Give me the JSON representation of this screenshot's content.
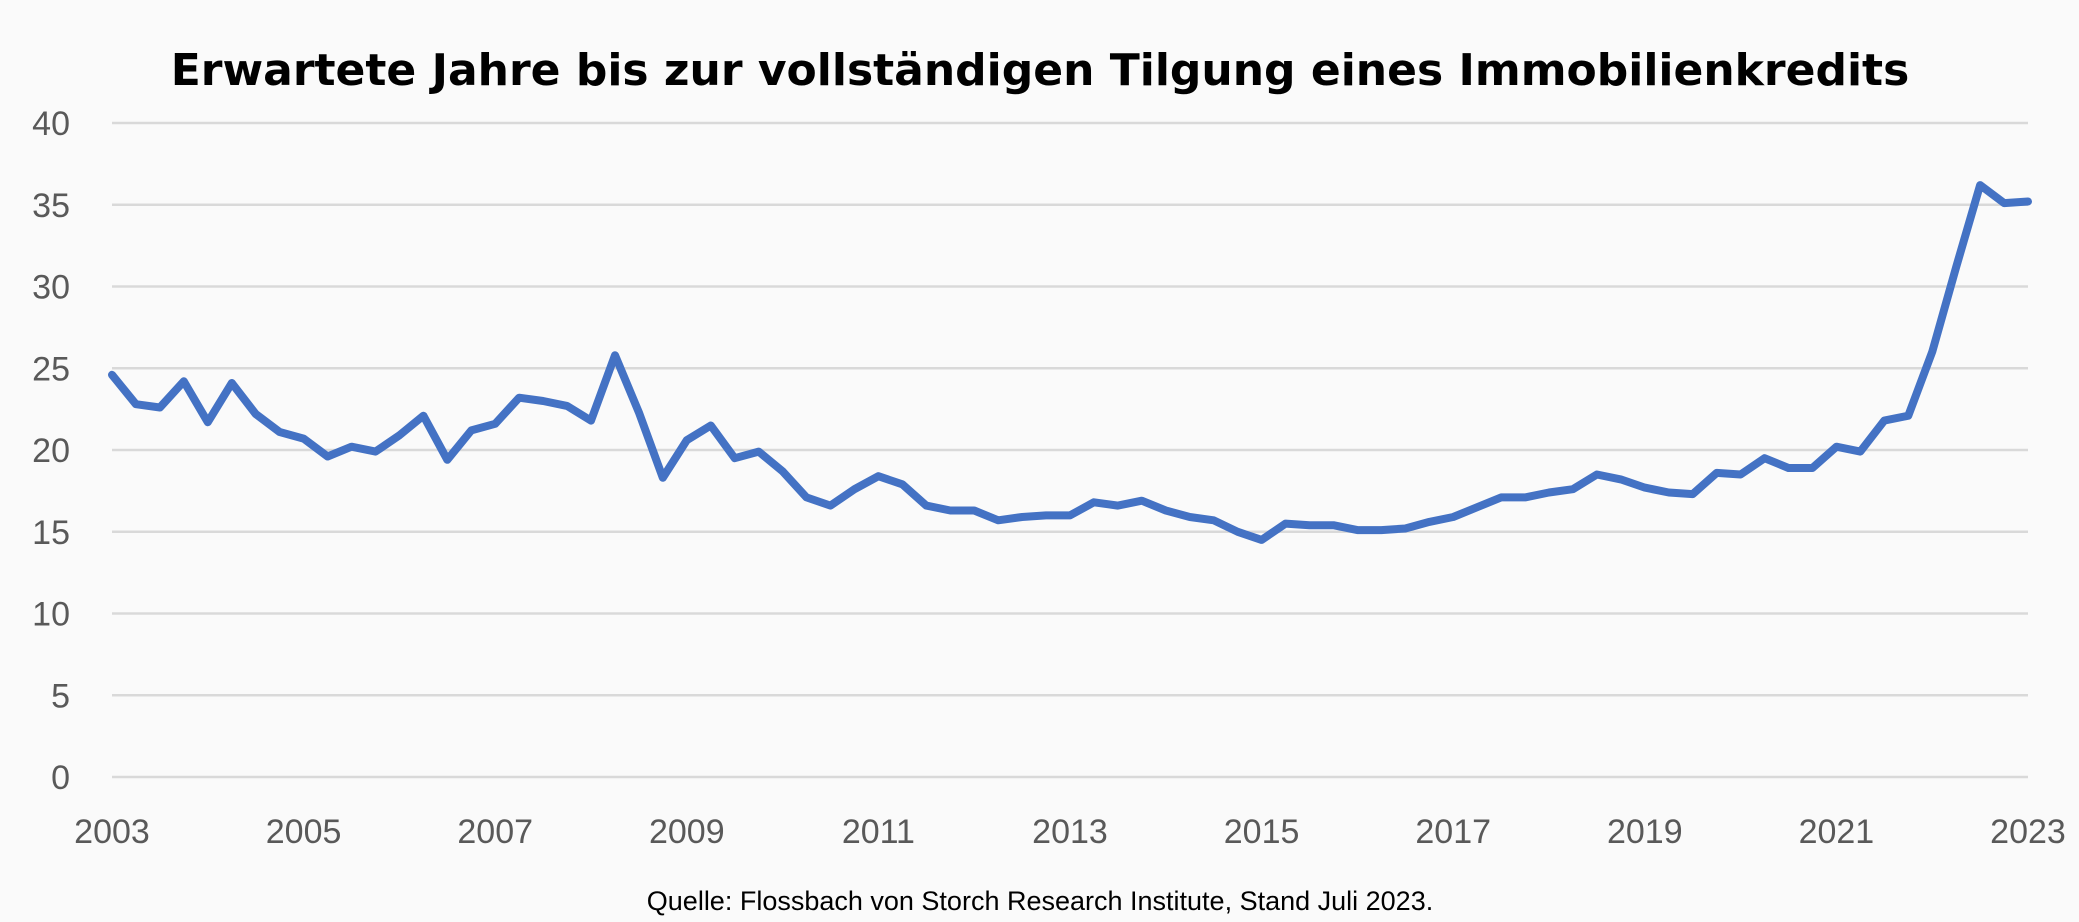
{
  "chart_data": {
    "type": "line",
    "title": "Erwartete Jahre bis zur vollständigen Tilgung eines Immobilienkredits",
    "source": "Quelle: Flossbach von Storch Research Institute, Stand Juli 2023.",
    "xlabel": "",
    "ylabel": "",
    "xlim": [
      2003,
      2023
    ],
    "ylim": [
      0,
      40
    ],
    "yticks": [
      0,
      5,
      10,
      15,
      20,
      25,
      30,
      35,
      40
    ],
    "xticks": [
      2003,
      2005,
      2007,
      2009,
      2011,
      2013,
      2015,
      2017,
      2019,
      2021,
      2023
    ],
    "grid": true,
    "legend": "none",
    "color": "#4472c4",
    "series": [
      {
        "x": [
          2003.0,
          2003.25,
          2003.5,
          2003.75,
          2004.0,
          2004.25,
          2004.5,
          2004.75,
          2005.0,
          2005.25,
          2005.5,
          2005.75,
          2006.0,
          2006.25,
          2006.5,
          2006.75,
          2007.0,
          2007.25,
          2007.5,
          2007.75,
          2008.0,
          2008.25,
          2008.5,
          2008.75,
          2009.0,
          2009.25,
          2009.5,
          2009.75,
          2010.0,
          2010.25,
          2010.5,
          2010.75,
          2011.0,
          2011.25,
          2011.5,
          2011.75,
          2012.0,
          2012.25,
          2012.5,
          2012.75,
          2013.0,
          2013.25,
          2013.5,
          2013.75,
          2014.0,
          2014.25,
          2014.5,
          2014.75,
          2015.0,
          2015.25,
          2015.5,
          2015.75,
          2016.0,
          2016.25,
          2016.5,
          2016.75,
          2017.0,
          2017.25,
          2017.5,
          2017.75,
          2018.0,
          2018.25,
          2018.5,
          2018.75,
          2019.0,
          2019.25,
          2019.5,
          2019.75,
          2020.0,
          2020.25,
          2020.5,
          2020.75,
          2021.0,
          2021.25,
          2021.5,
          2021.75,
          2022.0,
          2022.25,
          2022.5,
          2022.75,
          2023.0
        ],
        "values": [
          24.6,
          22.8,
          22.6,
          24.2,
          21.7,
          24.1,
          22.2,
          21.1,
          20.7,
          19.6,
          20.2,
          19.9,
          20.9,
          22.1,
          19.4,
          21.2,
          21.6,
          23.2,
          23.0,
          22.7,
          21.8,
          25.8,
          22.3,
          18.3,
          20.6,
          21.5,
          19.5,
          19.9,
          18.7,
          17.1,
          16.6,
          17.6,
          18.4,
          17.9,
          16.6,
          16.3,
          16.3,
          15.7,
          15.9,
          16.0,
          16.0,
          16.8,
          16.6,
          16.9,
          16.3,
          15.9,
          15.7,
          15.0,
          14.5,
          15.5,
          15.4,
          15.4,
          15.1,
          15.1,
          15.2,
          15.6,
          15.9,
          16.5,
          17.1,
          17.1,
          17.4,
          17.6,
          18.5,
          18.2,
          17.7,
          17.4,
          17.3,
          18.6,
          18.5,
          19.5,
          18.9,
          18.9,
          20.2,
          19.9,
          21.8,
          22.1,
          26.0,
          31.2,
          36.2,
          35.1,
          35.2
        ]
      }
    ]
  }
}
